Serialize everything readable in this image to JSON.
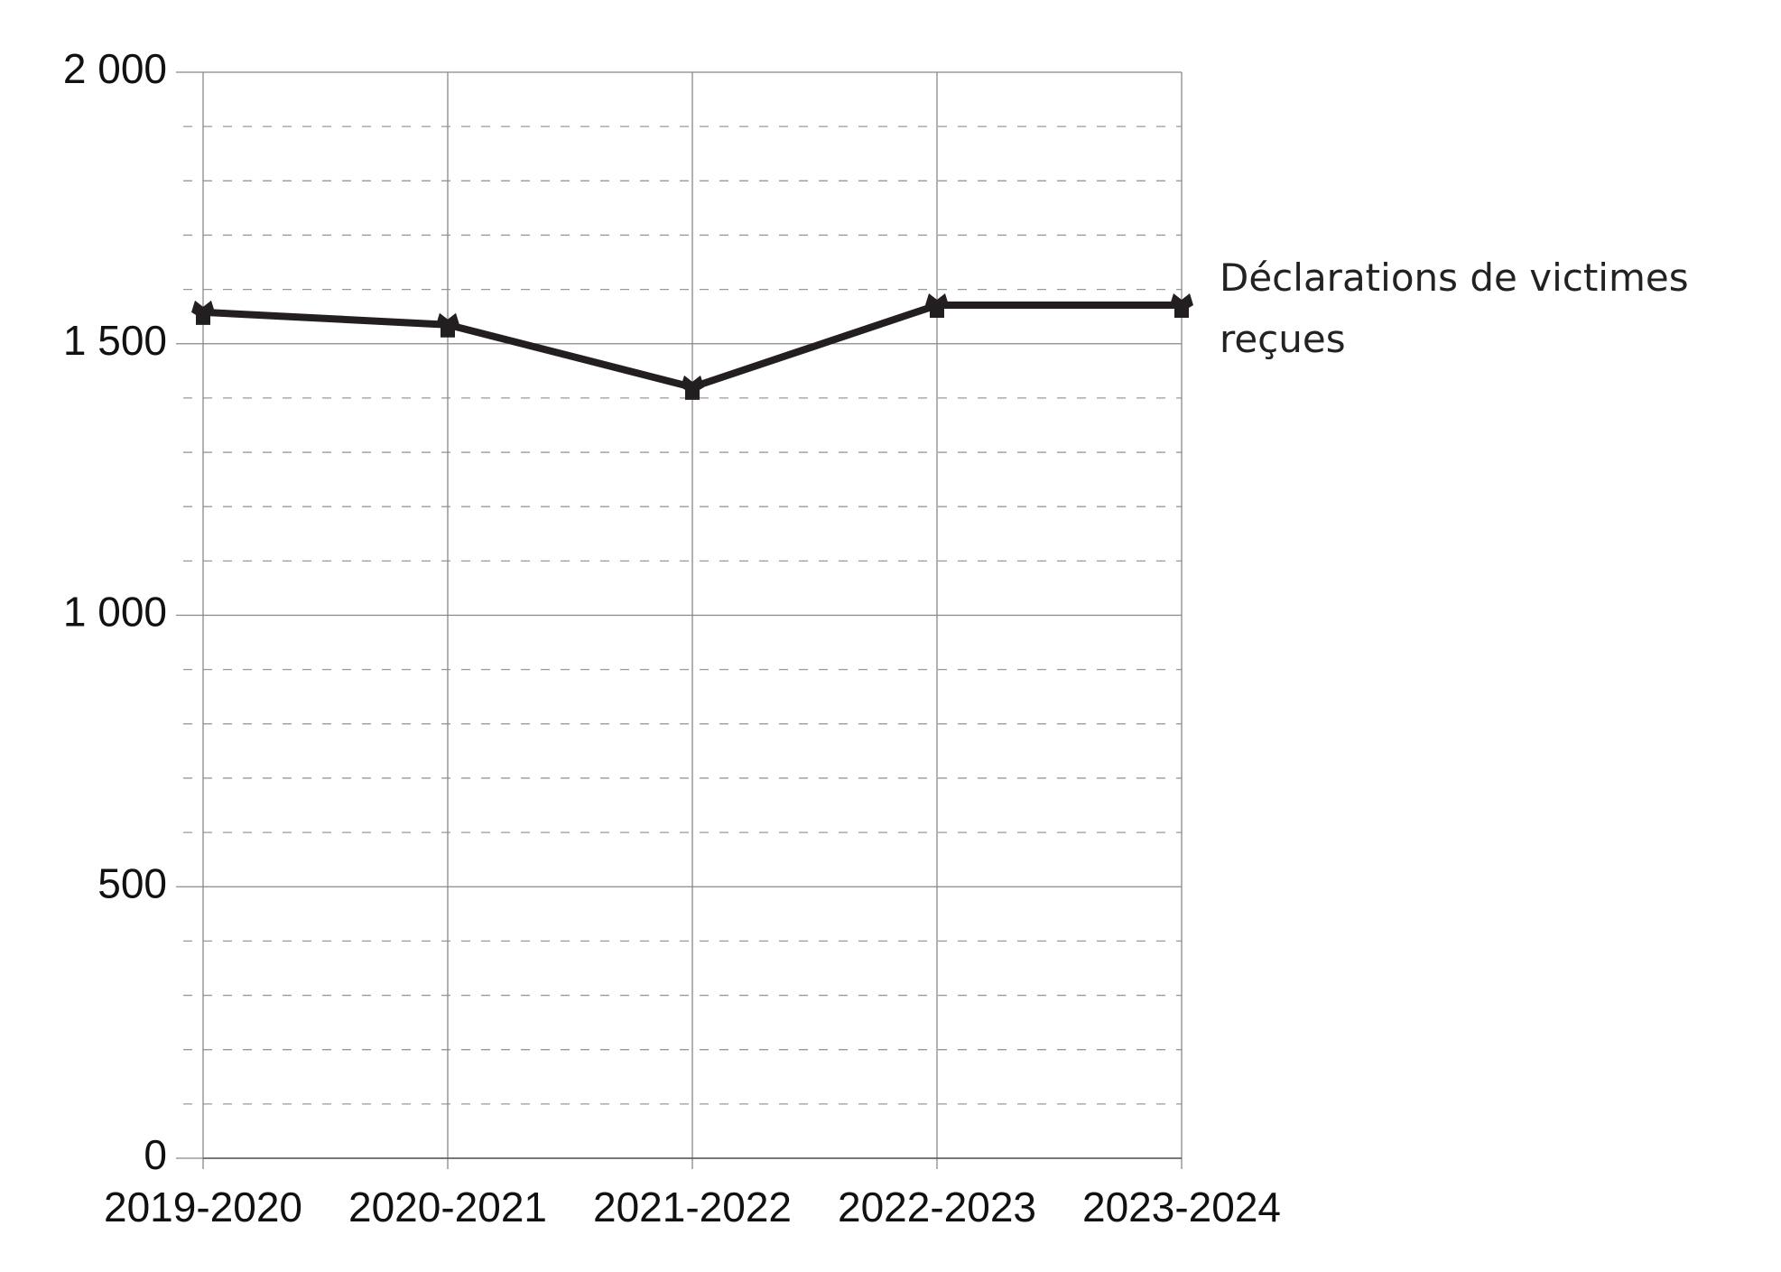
{
  "chart_data": {
    "type": "line",
    "categories": [
      "2019-2020",
      "2020-2021",
      "2021-2022",
      "2022-2023",
      "2023-2024"
    ],
    "series": [
      {
        "name": "Déclarations de victimes reçues",
        "color": "#231f20",
        "values": [
          1558,
          1535,
          1420,
          1571,
          1571
        ]
      }
    ],
    "ylim": [
      0,
      2000
    ],
    "yticks": [
      0,
      500,
      {
        "value": 1000,
        "label": "1 000"
      },
      {
        "value": 1500,
        "label": "1 500"
      },
      {
        "value": 2000,
        "label": "2 000"
      }
    ],
    "grid": true,
    "minor_grid_step": 100
  }
}
